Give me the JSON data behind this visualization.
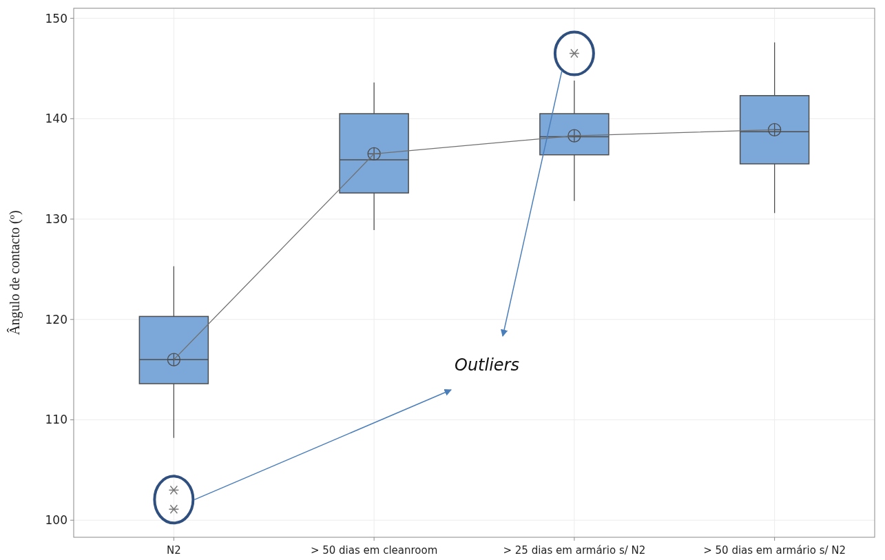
{
  "chart_data": {
    "type": "box",
    "ylabel": "Ângulo de contacto (º)",
    "categories": [
      "N2",
      "> 50 dias em cleanroom",
      "> 25 dias em armário s/ N2",
      "> 50 dias em armário s/ N2"
    ],
    "ylim": [
      98.3,
      151
    ],
    "yticks": [
      100,
      110,
      120,
      130,
      140,
      150
    ],
    "grid": true,
    "series": [
      {
        "color": "#7ba7d9",
        "boxes": [
          {
            "low": 108.2,
            "q1": 113.6,
            "median": 116,
            "q3": 120.3,
            "high": 125.3,
            "mean": 116,
            "outliers": [
              103,
              101.1
            ]
          },
          {
            "low": 128.9,
            "q1": 132.6,
            "median": 135.9,
            "q3": 140.5,
            "high": 143.6,
            "mean": 136.5
          },
          {
            "low": 131.8,
            "q1": 136.4,
            "median": 138.2,
            "q3": 140.5,
            "high": 143.8,
            "mean": 138.3,
            "outliers": [
              146.5
            ]
          },
          {
            "low": 130.6,
            "q1": 135.5,
            "median": 138.7,
            "q3": 142.3,
            "high": 147.6,
            "mean": 138.9
          }
        ]
      },
      {
        "type": "line",
        "color": "#707070",
        "values": [
          116,
          136.5,
          138.3,
          138.9
        ],
        "marker": "none"
      }
    ],
    "annotations": [
      "Outliers"
    ]
  }
}
